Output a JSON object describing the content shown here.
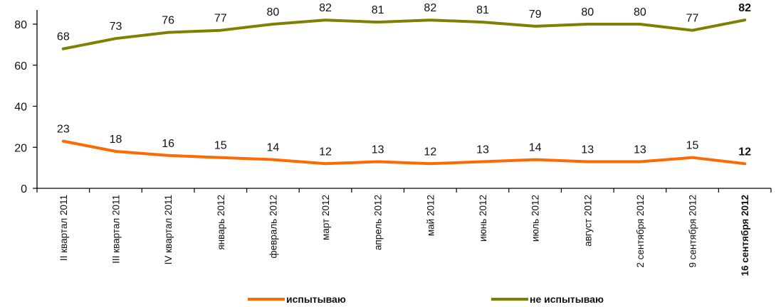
{
  "chart_data": {
    "type": "line",
    "categories": [
      "II квартал 2011",
      "III квартал 2011",
      "IV квартал 2011",
      "январь 2012",
      "февраль 2012",
      "март 2012",
      "апрель 2012",
      "май 2012",
      "июнь 2012",
      "июль 2012",
      "август 2012",
      "2 сентября 2012",
      "9 сентября 2012",
      "16 сентября 2012"
    ],
    "highlight_category_index": 13,
    "series": [
      {
        "name": "испытываю",
        "color": "#ff6a00",
        "values": [
          23,
          18,
          16,
          15,
          14,
          12,
          13,
          12,
          13,
          14,
          13,
          13,
          15,
          12
        ]
      },
      {
        "name": "не испытываю",
        "color": "#7f7f00",
        "values": [
          68,
          73,
          76,
          77,
          80,
          82,
          81,
          82,
          81,
          79,
          80,
          80,
          77,
          82
        ]
      }
    ],
    "ylim": [
      0,
      80
    ],
    "yticks": [
      0,
      20,
      40,
      60,
      80
    ],
    "grid": false,
    "legend_position": "bottom"
  }
}
